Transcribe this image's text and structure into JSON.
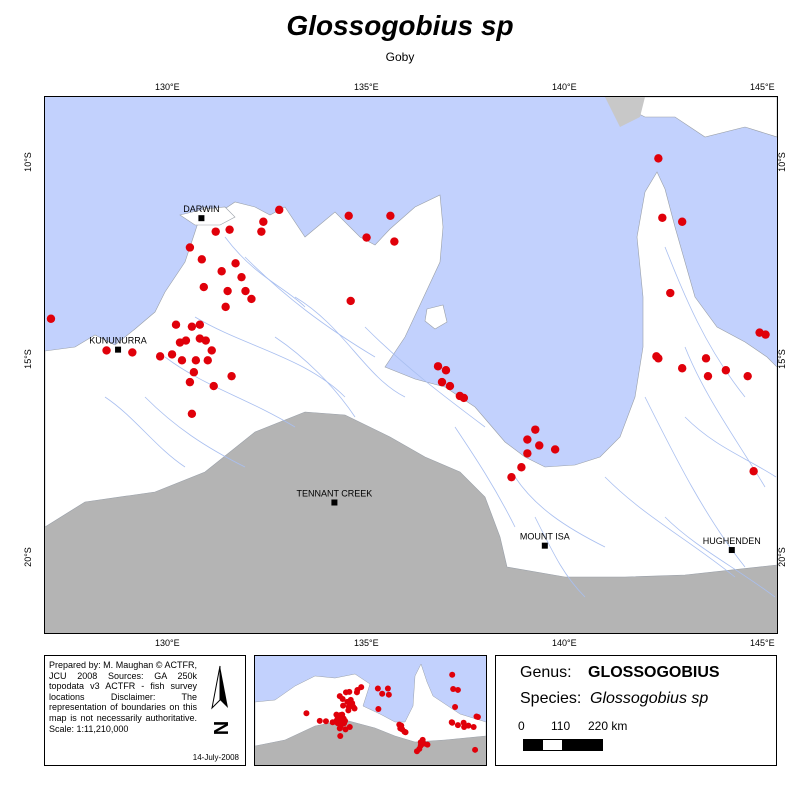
{
  "title": "Glossogobius sp",
  "subtitle": "Goby",
  "axes": {
    "top_ticks": [
      "130°E",
      "135°E",
      "140°E",
      "145°E"
    ],
    "bottom_ticks": [
      "130°E",
      "135°E",
      "140°E",
      "145°E"
    ],
    "left_ticks": [
      "10°S",
      "15°S",
      "20°S"
    ],
    "right_ticks": [
      "10°S",
      "15°S",
      "20°S"
    ]
  },
  "places": [
    {
      "name": "DARWIN",
      "lon": 130.84,
      "lat": -12.46
    },
    {
      "name": "KUNUNURRA",
      "lon": 128.74,
      "lat": -15.78
    },
    {
      "name": "TENNANT CREEK",
      "lon": 134.19,
      "lat": -19.64
    },
    {
      "name": "MOUNT ISA",
      "lon": 139.49,
      "lat": -20.73
    },
    {
      "name": "HUGHENDEN",
      "lon": 144.2,
      "lat": -20.84
    }
  ],
  "records": [
    [
      127.05,
      -15.0
    ],
    [
      128.45,
      -15.8
    ],
    [
      129.1,
      -15.85
    ],
    [
      129.8,
      -15.95
    ],
    [
      130.1,
      -15.9
    ],
    [
      130.3,
      -15.6
    ],
    [
      130.2,
      -15.15
    ],
    [
      130.6,
      -15.2
    ],
    [
      130.8,
      -15.15
    ],
    [
      130.45,
      -15.55
    ],
    [
      130.8,
      -15.5
    ],
    [
      130.95,
      -15.55
    ],
    [
      130.35,
      -16.05
    ],
    [
      130.7,
      -16.05
    ],
    [
      131.0,
      -16.05
    ],
    [
      131.1,
      -15.8
    ],
    [
      130.65,
      -16.35
    ],
    [
      130.55,
      -16.6
    ],
    [
      131.15,
      -16.7
    ],
    [
      131.6,
      -16.45
    ],
    [
      130.6,
      -17.4
    ],
    [
      130.55,
      -13.2
    ],
    [
      130.85,
      -13.5
    ],
    [
      131.35,
      -13.8
    ],
    [
      130.9,
      -14.2
    ],
    [
      131.2,
      -12.8
    ],
    [
      131.55,
      -12.75
    ],
    [
      131.7,
      -13.6
    ],
    [
      131.85,
      -13.95
    ],
    [
      131.5,
      -14.3
    ],
    [
      131.95,
      -14.3
    ],
    [
      132.1,
      -14.5
    ],
    [
      131.45,
      -14.7
    ],
    [
      132.35,
      -12.8
    ],
    [
      132.4,
      -12.55
    ],
    [
      132.8,
      -12.25
    ],
    [
      134.55,
      -12.4
    ],
    [
      135.0,
      -12.95
    ],
    [
      135.6,
      -12.4
    ],
    [
      135.7,
      -13.05
    ],
    [
      134.6,
      -14.55
    ],
    [
      136.8,
      -16.2
    ],
    [
      137.0,
      -16.3
    ],
    [
      136.9,
      -16.6
    ],
    [
      137.1,
      -16.7
    ],
    [
      137.35,
      -16.95
    ],
    [
      137.45,
      -17.0
    ],
    [
      139.05,
      -18.05
    ],
    [
      139.25,
      -17.8
    ],
    [
      139.35,
      -18.2
    ],
    [
      139.05,
      -18.4
    ],
    [
      139.75,
      -18.3
    ],
    [
      138.9,
      -18.75
    ],
    [
      138.65,
      -19.0
    ],
    [
      142.35,
      -10.95
    ],
    [
      142.45,
      -12.45
    ],
    [
      142.95,
      -12.55
    ],
    [
      142.65,
      -14.35
    ],
    [
      142.3,
      -15.95
    ],
    [
      142.35,
      -16.0
    ],
    [
      142.95,
      -16.25
    ],
    [
      143.55,
      -16.0
    ],
    [
      143.6,
      -16.45
    ],
    [
      144.05,
      -16.3
    ],
    [
      144.6,
      -16.45
    ],
    [
      144.9,
      -15.35
    ],
    [
      145.05,
      -15.4
    ],
    [
      144.75,
      -18.85
    ]
  ],
  "credits": {
    "text": "Prepared by: M. Maughan © ACTFR, JCU 2008 Sources: GA 250k topodata v3 ACTFR - fish survey locations Disclaimer: The representation of boundaries on this map is not necessarily authoritative. Scale: 1:11,210,000",
    "date": "14-July-2008"
  },
  "north_arrow": {
    "label": "N",
    "icon": "north-arrow-icon"
  },
  "legend": {
    "genus_label": "Genus:",
    "genus_value": "GLOSSOGOBIUS",
    "species_label": "Species:",
    "species_value": "Glossogobius sp",
    "scale_labels": [
      "0",
      "110",
      "220 km"
    ]
  },
  "colors": {
    "sea": "#c2d1fd",
    "land": "#ffffff",
    "outside_region": "#b4b4b4",
    "river": "#a9bff0",
    "record": "#e0000a"
  }
}
